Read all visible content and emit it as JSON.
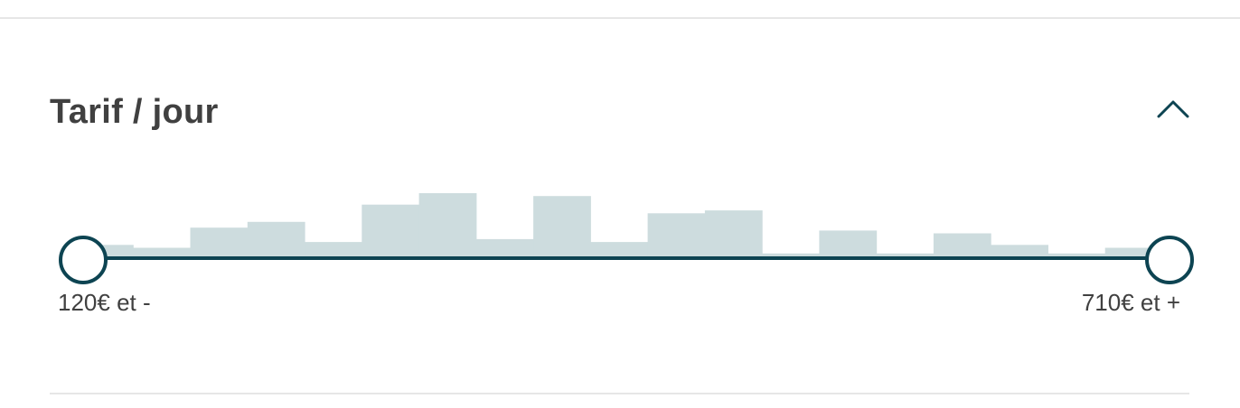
{
  "filter": {
    "title": "Tarif / jour",
    "toggle_icon": "chevron-up-icon",
    "min_label": "120€ et -",
    "max_label": "710€ et +",
    "colors": {
      "track": "#0d4452",
      "bar": "#cddcde",
      "title": "#404040"
    }
  },
  "chart_data": {
    "type": "bar",
    "values": [
      4,
      3,
      10,
      12,
      5,
      18,
      22,
      6,
      21,
      5,
      15,
      16,
      1,
      9,
      1,
      8,
      4,
      1,
      3
    ],
    "ylim": [
      0,
      22
    ],
    "title": "",
    "xlabel": "",
    "ylabel": ""
  }
}
